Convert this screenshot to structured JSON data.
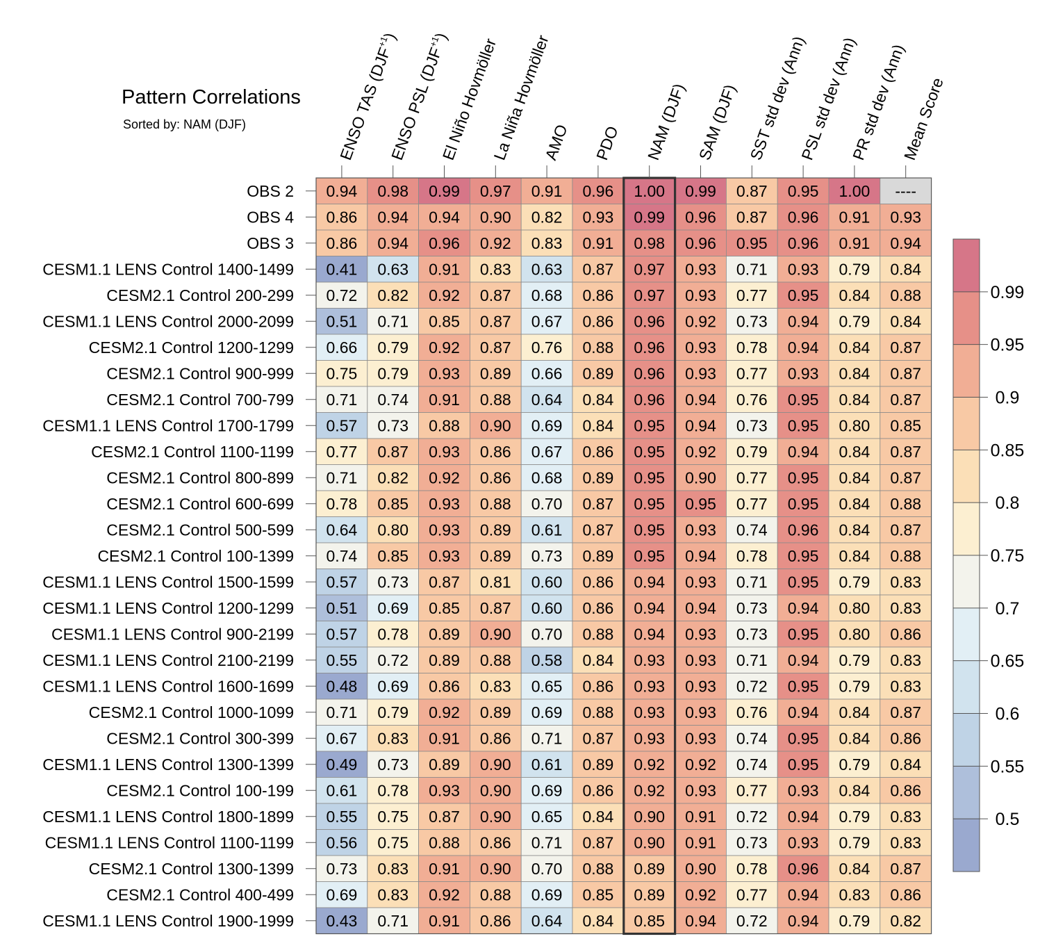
{
  "chart_data": {
    "type": "heatmap",
    "title": "Pattern Correlations",
    "subtitle": "Sorted by: NAM (DJF)",
    "highlight_column": "NAM (DJF)",
    "columns": [
      {
        "base": "ENSO TAS (DJF",
        "sup": "+1",
        "tail": ")"
      },
      {
        "base": "ENSO PSL (DJF",
        "sup": "+1",
        "tail": ")"
      },
      {
        "base": "El Niño Hovmöller",
        "sup": "",
        "tail": ""
      },
      {
        "base": "La Niña Hovmöller",
        "sup": "",
        "tail": ""
      },
      {
        "base": "AMO",
        "sup": "",
        "tail": ""
      },
      {
        "base": "PDO",
        "sup": "",
        "tail": ""
      },
      {
        "base": "NAM (DJF)",
        "sup": "",
        "tail": ""
      },
      {
        "base": "SAM (DJF)",
        "sup": "",
        "tail": ""
      },
      {
        "base": "SST std dev (Ann)",
        "sup": "",
        "tail": ""
      },
      {
        "base": "PSL std dev (Ann)",
        "sup": "",
        "tail": ""
      },
      {
        "base": "PR std dev (Ann)",
        "sup": "",
        "tail": ""
      },
      {
        "base": "Mean Score",
        "sup": "",
        "tail": ""
      }
    ],
    "rows": [
      {
        "label": "OBS 2",
        "values": [
          "0.94",
          "0.98",
          "0.99",
          "0.97",
          "0.91",
          "0.96",
          "1.00",
          "0.99",
          "0.87",
          "0.95",
          "1.00",
          "----"
        ]
      },
      {
        "label": "OBS 4",
        "values": [
          "0.86",
          "0.94",
          "0.94",
          "0.90",
          "0.82",
          "0.93",
          "0.99",
          "0.96",
          "0.87",
          "0.96",
          "0.91",
          "0.93"
        ]
      },
      {
        "label": "OBS 3",
        "values": [
          "0.86",
          "0.94",
          "0.96",
          "0.92",
          "0.83",
          "0.91",
          "0.98",
          "0.96",
          "0.95",
          "0.96",
          "0.91",
          "0.94"
        ]
      },
      {
        "label": "CESM1.1 LENS Control 1400-1499",
        "values": [
          "0.41",
          "0.63",
          "0.91",
          "0.83",
          "0.63",
          "0.87",
          "0.97",
          "0.93",
          "0.71",
          "0.93",
          "0.79",
          "0.84"
        ]
      },
      {
        "label": "CESM2.1 Control 200-299",
        "values": [
          "0.72",
          "0.82",
          "0.92",
          "0.87",
          "0.68",
          "0.86",
          "0.97",
          "0.93",
          "0.77",
          "0.95",
          "0.84",
          "0.88"
        ]
      },
      {
        "label": "CESM1.1 LENS Control 2000-2099",
        "values": [
          "0.51",
          "0.71",
          "0.85",
          "0.87",
          "0.67",
          "0.86",
          "0.96",
          "0.92",
          "0.73",
          "0.94",
          "0.79",
          "0.84"
        ]
      },
      {
        "label": "CESM2.1 Control 1200-1299",
        "values": [
          "0.66",
          "0.79",
          "0.92",
          "0.87",
          "0.76",
          "0.88",
          "0.96",
          "0.93",
          "0.78",
          "0.94",
          "0.84",
          "0.87"
        ]
      },
      {
        "label": "CESM2.1 Control 900-999",
        "values": [
          "0.75",
          "0.79",
          "0.93",
          "0.89",
          "0.66",
          "0.89",
          "0.96",
          "0.93",
          "0.77",
          "0.93",
          "0.84",
          "0.87"
        ]
      },
      {
        "label": "CESM2.1 Control 700-799",
        "values": [
          "0.71",
          "0.74",
          "0.91",
          "0.88",
          "0.64",
          "0.84",
          "0.96",
          "0.94",
          "0.76",
          "0.95",
          "0.84",
          "0.87"
        ]
      },
      {
        "label": "CESM1.1 LENS Control 1700-1799",
        "values": [
          "0.57",
          "0.73",
          "0.88",
          "0.90",
          "0.69",
          "0.84",
          "0.95",
          "0.94",
          "0.73",
          "0.95",
          "0.80",
          "0.85"
        ]
      },
      {
        "label": "CESM2.1 Control 1100-1199",
        "values": [
          "0.77",
          "0.87",
          "0.93",
          "0.86",
          "0.67",
          "0.86",
          "0.95",
          "0.92",
          "0.79",
          "0.94",
          "0.84",
          "0.87"
        ]
      },
      {
        "label": "CESM2.1 Control 800-899",
        "values": [
          "0.71",
          "0.82",
          "0.92",
          "0.86",
          "0.68",
          "0.89",
          "0.95",
          "0.90",
          "0.77",
          "0.95",
          "0.84",
          "0.87"
        ]
      },
      {
        "label": "CESM2.1 Control 600-699",
        "values": [
          "0.78",
          "0.85",
          "0.93",
          "0.88",
          "0.70",
          "0.87",
          "0.95",
          "0.95",
          "0.77",
          "0.95",
          "0.84",
          "0.88"
        ]
      },
      {
        "label": "CESM2.1 Control 500-599",
        "values": [
          "0.64",
          "0.80",
          "0.93",
          "0.89",
          "0.61",
          "0.87",
          "0.95",
          "0.93",
          "0.74",
          "0.96",
          "0.84",
          "0.87"
        ]
      },
      {
        "label": "CESM2.1 Control 100-1399",
        "values": [
          "0.74",
          "0.85",
          "0.93",
          "0.89",
          "0.73",
          "0.89",
          "0.95",
          "0.94",
          "0.78",
          "0.95",
          "0.84",
          "0.88"
        ]
      },
      {
        "label": "CESM1.1 LENS Control 1500-1599",
        "values": [
          "0.57",
          "0.73",
          "0.87",
          "0.81",
          "0.60",
          "0.86",
          "0.94",
          "0.93",
          "0.71",
          "0.95",
          "0.79",
          "0.83"
        ]
      },
      {
        "label": "CESM1.1 LENS Control 1200-1299",
        "values": [
          "0.51",
          "0.69",
          "0.85",
          "0.87",
          "0.60",
          "0.86",
          "0.94",
          "0.94",
          "0.73",
          "0.94",
          "0.80",
          "0.83"
        ]
      },
      {
        "label": "CESM1.1 LENS Control 900-2199",
        "values": [
          "0.57",
          "0.78",
          "0.89",
          "0.90",
          "0.70",
          "0.88",
          "0.94",
          "0.93",
          "0.73",
          "0.95",
          "0.80",
          "0.86"
        ]
      },
      {
        "label": "CESM1.1 LENS Control 2100-2199",
        "values": [
          "0.55",
          "0.72",
          "0.89",
          "0.88",
          "0.58",
          "0.84",
          "0.93",
          "0.93",
          "0.71",
          "0.94",
          "0.79",
          "0.83"
        ]
      },
      {
        "label": "CESM1.1 LENS Control 1600-1699",
        "values": [
          "0.48",
          "0.69",
          "0.86",
          "0.83",
          "0.65",
          "0.86",
          "0.93",
          "0.93",
          "0.72",
          "0.95",
          "0.79",
          "0.83"
        ]
      },
      {
        "label": "CESM2.1 Control 1000-1099",
        "values": [
          "0.71",
          "0.79",
          "0.92",
          "0.89",
          "0.69",
          "0.88",
          "0.93",
          "0.93",
          "0.76",
          "0.94",
          "0.84",
          "0.87"
        ]
      },
      {
        "label": "CESM2.1 Control 300-399",
        "values": [
          "0.67",
          "0.83",
          "0.91",
          "0.86",
          "0.71",
          "0.87",
          "0.93",
          "0.93",
          "0.74",
          "0.95",
          "0.84",
          "0.86"
        ]
      },
      {
        "label": "CESM1.1 LENS Control 1300-1399",
        "values": [
          "0.49",
          "0.73",
          "0.89",
          "0.90",
          "0.61",
          "0.89",
          "0.92",
          "0.92",
          "0.74",
          "0.95",
          "0.79",
          "0.84"
        ]
      },
      {
        "label": "CESM2.1 Control 100-199",
        "values": [
          "0.61",
          "0.78",
          "0.93",
          "0.90",
          "0.69",
          "0.86",
          "0.92",
          "0.93",
          "0.77",
          "0.93",
          "0.84",
          "0.86"
        ]
      },
      {
        "label": "CESM1.1 LENS Control 1800-1899",
        "values": [
          "0.55",
          "0.75",
          "0.87",
          "0.90",
          "0.65",
          "0.84",
          "0.90",
          "0.91",
          "0.72",
          "0.94",
          "0.79",
          "0.83"
        ]
      },
      {
        "label": "CESM1.1 LENS Control 1100-1199",
        "values": [
          "0.56",
          "0.75",
          "0.88",
          "0.86",
          "0.71",
          "0.87",
          "0.90",
          "0.91",
          "0.73",
          "0.93",
          "0.79",
          "0.83"
        ]
      },
      {
        "label": "CESM2.1 Control 1300-1399",
        "values": [
          "0.73",
          "0.83",
          "0.91",
          "0.90",
          "0.70",
          "0.88",
          "0.89",
          "0.90",
          "0.78",
          "0.96",
          "0.84",
          "0.87"
        ]
      },
      {
        "label": "CESM2.1 Control 400-499",
        "values": [
          "0.69",
          "0.83",
          "0.92",
          "0.88",
          "0.69",
          "0.85",
          "0.89",
          "0.92",
          "0.77",
          "0.94",
          "0.83",
          "0.86"
        ]
      },
      {
        "label": "CESM1.1 LENS Control 1900-1999",
        "values": [
          "0.43",
          "0.71",
          "0.91",
          "0.86",
          "0.64",
          "0.84",
          "0.85",
          "0.94",
          "0.72",
          "0.94",
          "0.79",
          "0.82"
        ]
      }
    ],
    "colorbar": {
      "ticks": [
        "0.5",
        "0.55",
        "0.6",
        "0.65",
        "0.7",
        "0.75",
        "0.8",
        "0.85",
        "0.9",
        "0.95",
        "0.99"
      ],
      "bins": [
        {
          "min": 0.0,
          "max": 0.5,
          "color": "#9aa9cf"
        },
        {
          "min": 0.5,
          "max": 0.55,
          "color": "#aebfdb"
        },
        {
          "min": 0.55,
          "max": 0.6,
          "color": "#bfd3e6"
        },
        {
          "min": 0.6,
          "max": 0.65,
          "color": "#d1e3ee"
        },
        {
          "min": 0.65,
          "max": 0.7,
          "color": "#e2eff5"
        },
        {
          "min": 0.7,
          "max": 0.75,
          "color": "#f3f3ec"
        },
        {
          "min": 0.75,
          "max": 0.8,
          "color": "#fcefd1"
        },
        {
          "min": 0.8,
          "max": 0.85,
          "color": "#fbdfb7"
        },
        {
          "min": 0.85,
          "max": 0.9,
          "color": "#f8c9a5"
        },
        {
          "min": 0.9,
          "max": 0.95,
          "color": "#f1ae95"
        },
        {
          "min": 0.95,
          "max": 0.99,
          "color": "#e69088"
        },
        {
          "min": 0.99,
          "max": 1.01,
          "color": "#d67688"
        }
      ],
      "missing_color": "#d9d9d9"
    }
  }
}
